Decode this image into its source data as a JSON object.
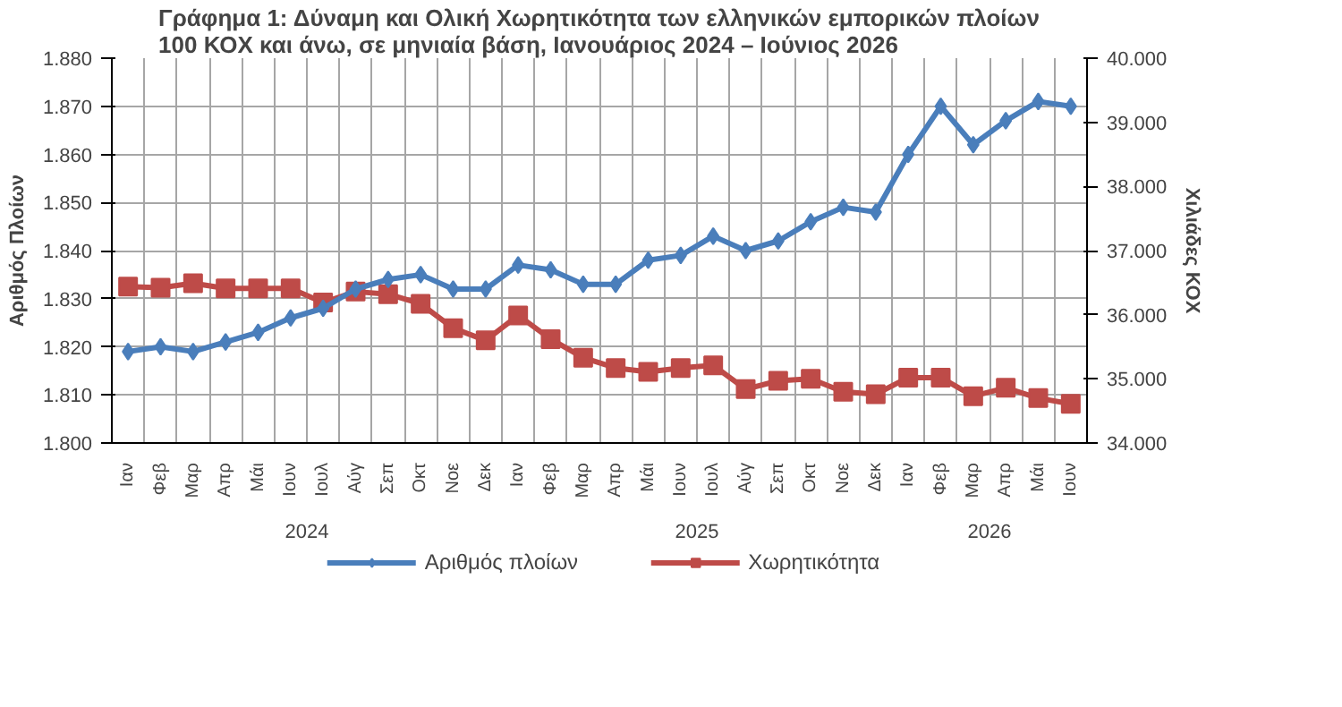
{
  "chart_data": {
    "type": "line",
    "title": "Γράφημα 1: Δύναμη και Ολική Χωρητικότητα των ελληνικών εμπορικών πλοίων 100 ΚΟΧ και άνω, σε μηνιαία βάση, Ιανουάριος 2024 – Ιούνιος 2026",
    "ylabel": "Αριθμός Πλοίων",
    "y2label": "Χιλιάδες ΚΟΧ",
    "annotations": [
      "2024",
      "2025",
      "2026"
    ],
    "categories": [
      "Ιαν",
      "Φεβ",
      "Μαρ",
      "Απρ",
      "Μάι",
      "Ιουν",
      "Ιουλ",
      "Αύγ",
      "Σεπ",
      "Οκτ",
      "Νοε",
      "Δεκ",
      "Ιαν",
      "Φεβ",
      "Μαρ",
      "Απρ",
      "Μάι",
      "Ιουν",
      "Ιουλ",
      "Αύγ",
      "Σεπ",
      "Οκτ",
      "Νοε",
      "Δεκ",
      "Ιαν",
      "Φεβ",
      "Μαρ",
      "Απρ",
      "Μάι",
      "Ιουν"
    ],
    "series": [
      {
        "name": "Αριθμός πλοίων",
        "color": "#4a7ebb",
        "marker": "diamond",
        "values": [
          1819,
          1820,
          1819,
          1821,
          1823,
          1826,
          1828,
          1832,
          1834,
          1835,
          1832,
          1832,
          1837,
          1836,
          1833,
          1833,
          1838,
          1839,
          1843,
          1840,
          1842,
          1846,
          1849,
          1848,
          1860,
          1870,
          1862,
          1867,
          1871,
          1870
        ]
      },
      {
        "name": "Χωρητικότητα",
        "color": "#be4b48",
        "marker": "square",
        "axis": "y2",
        "values": [
          36440,
          36420,
          36490,
          36410,
          36410,
          36410,
          36190,
          36360,
          36320,
          36170,
          35790,
          35600,
          35990,
          35620,
          35330,
          35170,
          35110,
          35170,
          35210,
          34840,
          34970,
          35000,
          34800,
          34760,
          35020,
          35020,
          34730,
          34860,
          34700,
          34610
        ]
      }
    ],
    "ylim": [
      1800,
      1880
    ],
    "yticks": [
      {
        "value": 1800,
        "label": "1.800"
      },
      {
        "value": 1810,
        "label": "1.810"
      },
      {
        "value": 1820,
        "label": "1.820"
      },
      {
        "value": 1830,
        "label": "1.830"
      },
      {
        "value": 1840,
        "label": "1.840"
      },
      {
        "value": 1850,
        "label": "1.850"
      },
      {
        "value": 1860,
        "label": "1.860"
      },
      {
        "value": 1870,
        "label": "1.870"
      },
      {
        "value": 1880,
        "label": "1.880"
      }
    ],
    "y2lim": [
      34000,
      40000
    ],
    "y2ticks": [
      {
        "value": 34000,
        "label": "34.000"
      },
      {
        "value": 35000,
        "label": "35.000"
      },
      {
        "value": 36000,
        "label": "36.000"
      },
      {
        "value": 37000,
        "label": "37.000"
      },
      {
        "value": 38000,
        "label": "38.000"
      },
      {
        "value": 39000,
        "label": "39.000"
      },
      {
        "value": 40000,
        "label": "40.000"
      }
    ],
    "grid": true,
    "legend": "bottom",
    "line_style": "solid"
  }
}
